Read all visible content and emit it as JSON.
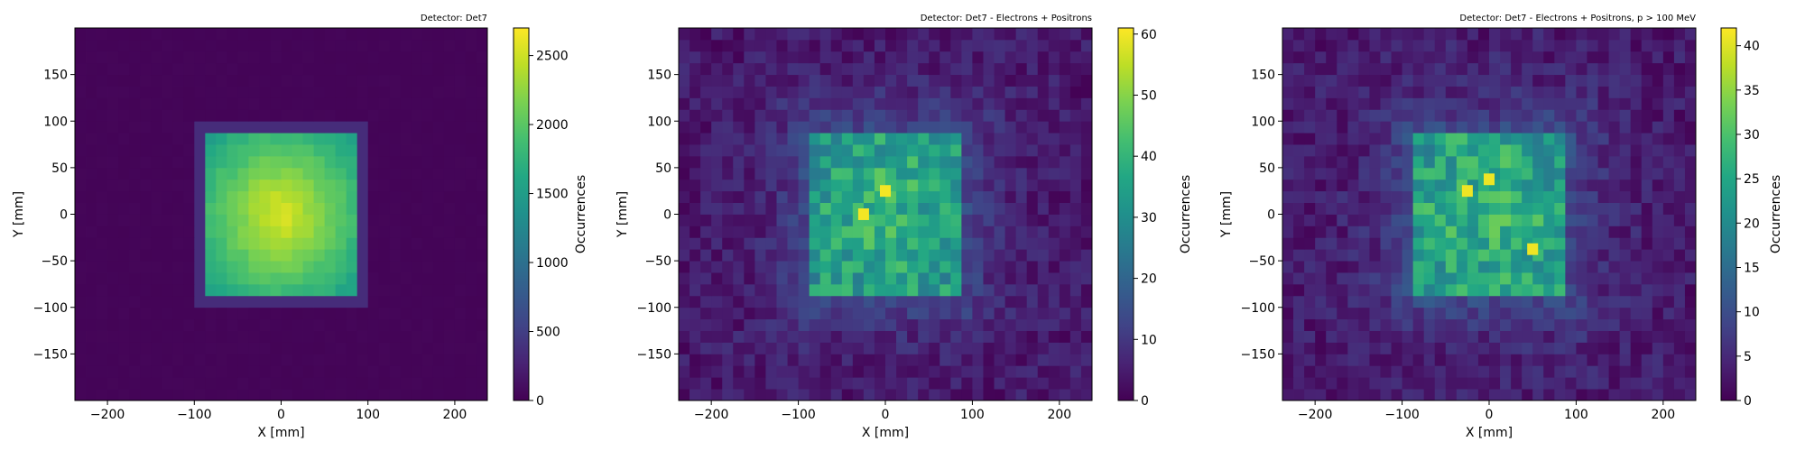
{
  "chart_data": [
    {
      "type": "heatmap",
      "title": "Detector: Det7",
      "xlabel": "X [mm]",
      "ylabel": "Y [mm]",
      "colorbar_label": "Occurrences",
      "xlim": [
        -237.5,
        237.5
      ],
      "ylim": [
        -200,
        200
      ],
      "bins": {
        "x_edges_from": -237.5,
        "x_bin_width": 12.5,
        "nx": 38,
        "y_edges_from": -200,
        "y_bin_width": 12.5,
        "ny": 32
      },
      "xticks": [
        -200,
        -100,
        0,
        100,
        200
      ],
      "yticks": [
        -150,
        -100,
        -50,
        0,
        50,
        100,
        150
      ],
      "cbar_range": [
        0,
        2700
      ],
      "cbar_ticks": [
        0,
        500,
        1000,
        1500,
        2000,
        2500
      ],
      "distribution": {
        "shape": "square",
        "x_range": [
          -90,
          90
        ],
        "y_range": [
          -87.5,
          90
        ],
        "center_value": 2600,
        "edge_value": 1500,
        "outside_value": 30,
        "halo_value": 350
      }
    },
    {
      "type": "heatmap",
      "title": "Detector: Det7 - Electrons + Positrons",
      "xlabel": "X [mm]",
      "ylabel": "Y [mm]",
      "colorbar_label": "Occurrences",
      "xlim": [
        -237.5,
        237.5
      ],
      "ylim": [
        -200,
        200
      ],
      "bins": {
        "x_edges_from": -237.5,
        "x_bin_width": 12.5,
        "nx": 38,
        "y_edges_from": -200,
        "y_bin_width": 12.5,
        "ny": 32
      },
      "xticks": [
        -200,
        -100,
        0,
        100,
        200
      ],
      "yticks": [
        -150,
        -100,
        -50,
        0,
        50,
        100,
        150
      ],
      "cbar_range": [
        0,
        61
      ],
      "cbar_ticks": [
        0,
        10,
        20,
        30,
        40,
        50,
        60
      ],
      "distribution": {
        "shape": "square-noisy",
        "x_range": [
          -90,
          90
        ],
        "y_range": [
          -87.5,
          90
        ],
        "center_value": 40,
        "edge_value": 30,
        "outside_value": 4,
        "halo_value": 14,
        "peak_value": 60
      }
    },
    {
      "type": "heatmap",
      "title": "Detector: Det7 - Electrons + Positrons, p > 100 MeV",
      "xlabel": "X [mm]",
      "ylabel": "Y [mm]",
      "colorbar_label": "Occurrences",
      "xlim": [
        -237.5,
        237.5
      ],
      "ylim": [
        -200,
        200
      ],
      "bins": {
        "x_edges_from": -237.5,
        "x_bin_width": 12.5,
        "nx": 38,
        "y_edges_from": -200,
        "y_bin_width": 12.5,
        "ny": 32
      },
      "xticks": [
        -200,
        -100,
        0,
        100,
        200
      ],
      "yticks": [
        -150,
        -100,
        -50,
        0,
        50,
        100,
        150
      ],
      "cbar_range": [
        0,
        42
      ],
      "cbar_ticks": [
        0,
        5,
        10,
        15,
        20,
        25,
        30,
        35,
        40
      ],
      "distribution": {
        "shape": "square-noisy",
        "x_range": [
          -90,
          90
        ],
        "y_range": [
          -87.5,
          90
        ],
        "center_value": 28,
        "edge_value": 21,
        "outside_value": 3,
        "halo_value": 10,
        "peak_value": 41
      }
    }
  ]
}
